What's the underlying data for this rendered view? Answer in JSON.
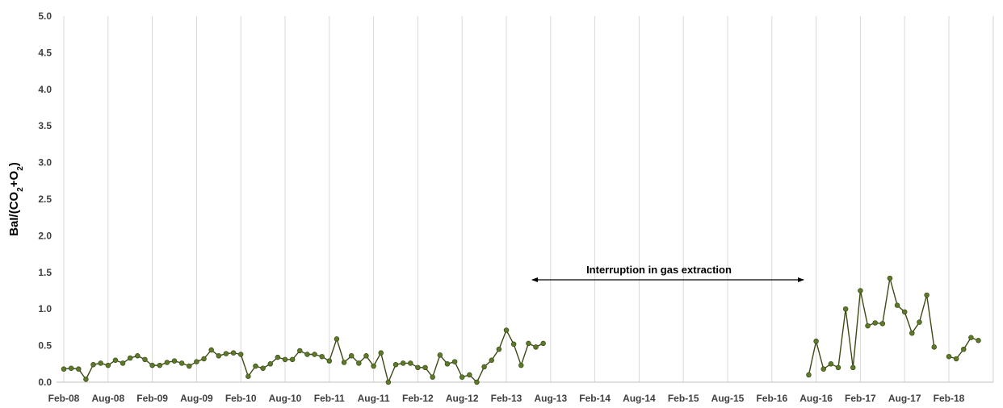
{
  "chart_data": {
    "type": "line",
    "title": "",
    "ylabel": {
      "base": "BaI/(CO",
      "sub1": "2",
      "mid": "+O",
      "sub2": "2",
      "end": ")"
    },
    "xlabel": "",
    "ylim": [
      0,
      5.0
    ],
    "yticks": [
      "0.0",
      "0.5",
      "1.0",
      "1.5",
      "2.0",
      "2.5",
      "3.0",
      "3.5",
      "4.0",
      "4.5",
      "5.0"
    ],
    "xticks": [
      "Feb-08",
      "Aug-08",
      "Feb-09",
      "Aug-09",
      "Feb-10",
      "Aug-10",
      "Feb-11",
      "Aug-11",
      "Feb-12",
      "Aug-12",
      "Feb-13",
      "Aug-13",
      "Feb-14",
      "Aug-14",
      "Feb-15",
      "Aug-15",
      "Feb-16",
      "Aug-16",
      "Feb-17",
      "Aug-17",
      "Feb-18"
    ],
    "grid": "vertical",
    "annotation": "Interruption in gas extraction",
    "colors": {
      "line": "#3d4a14",
      "marker": "#5c7a28",
      "grid": "#d9d9d9",
      "arrow": "#000000"
    },
    "series": [
      {
        "segments": [
          [
            {
              "x": "Feb-08",
              "y": 0.18
            },
            {
              "x": "Mar-08",
              "y": 0.19
            },
            {
              "x": "Apr-08",
              "y": 0.18
            },
            {
              "x": "May-08",
              "y": 0.04
            },
            {
              "x": "Jun-08",
              "y": 0.24
            },
            {
              "x": "Jul-08",
              "y": 0.26
            },
            {
              "x": "Aug-08",
              "y": 0.23
            },
            {
              "x": "Sep-08",
              "y": 0.3
            },
            {
              "x": "Oct-08",
              "y": 0.26
            },
            {
              "x": "Nov-08",
              "y": 0.33
            },
            {
              "x": "Dec-08",
              "y": 0.36
            },
            {
              "x": "Jan-09",
              "y": 0.31
            },
            {
              "x": "Feb-09",
              "y": 0.23
            },
            {
              "x": "Mar-09",
              "y": 0.23
            },
            {
              "x": "Apr-09",
              "y": 0.27
            },
            {
              "x": "May-09",
              "y": 0.29
            },
            {
              "x": "Jun-09",
              "y": 0.26
            },
            {
              "x": "Jul-09",
              "y": 0.22
            },
            {
              "x": "Aug-09",
              "y": 0.28
            },
            {
              "x": "Sep-09",
              "y": 0.32
            },
            {
              "x": "Oct-09",
              "y": 0.44
            },
            {
              "x": "Nov-09",
              "y": 0.36
            },
            {
              "x": "Dec-09",
              "y": 0.39
            },
            {
              "x": "Jan-10",
              "y": 0.4
            },
            {
              "x": "Feb-10",
              "y": 0.38
            },
            {
              "x": "Mar-10",
              "y": 0.08
            },
            {
              "x": "Apr-10",
              "y": 0.22
            },
            {
              "x": "May-10",
              "y": 0.19
            },
            {
              "x": "Jun-10",
              "y": 0.25
            },
            {
              "x": "Jul-10",
              "y": 0.34
            },
            {
              "x": "Aug-10",
              "y": 0.31
            },
            {
              "x": "Sep-10",
              "y": 0.31
            },
            {
              "x": "Oct-10",
              "y": 0.43
            },
            {
              "x": "Nov-10",
              "y": 0.38
            },
            {
              "x": "Dec-10",
              "y": 0.38
            },
            {
              "x": "Jan-11",
              "y": 0.35
            },
            {
              "x": "Feb-11",
              "y": 0.29
            },
            {
              "x": "Mar-11",
              "y": 0.59
            },
            {
              "x": "Apr-11",
              "y": 0.27
            },
            {
              "x": "May-11",
              "y": 0.36
            },
            {
              "x": "Jun-11",
              "y": 0.26
            },
            {
              "x": "Jul-11",
              "y": 0.36
            },
            {
              "x": "Aug-11",
              "y": 0.22
            },
            {
              "x": "Sep-11",
              "y": 0.4
            },
            {
              "x": "Oct-11",
              "y": 0.0
            },
            {
              "x": "Nov-11",
              "y": 0.24
            },
            {
              "x": "Dec-11",
              "y": 0.26
            },
            {
              "x": "Jan-12",
              "y": 0.26
            },
            {
              "x": "Feb-12",
              "y": 0.2
            },
            {
              "x": "Mar-12",
              "y": 0.2
            },
            {
              "x": "Apr-12",
              "y": 0.07
            },
            {
              "x": "May-12",
              "y": 0.37
            },
            {
              "x": "Jun-12",
              "y": 0.25
            },
            {
              "x": "Jul-12",
              "y": 0.28
            },
            {
              "x": "Aug-12",
              "y": 0.07
            },
            {
              "x": "Sep-12",
              "y": 0.1
            },
            {
              "x": "Oct-12",
              "y": 0.0
            },
            {
              "x": "Nov-12",
              "y": 0.21
            },
            {
              "x": "Dec-12",
              "y": 0.3
            },
            {
              "x": "Jan-13",
              "y": 0.45
            },
            {
              "x": "Feb-13",
              "y": 0.71
            },
            {
              "x": "Mar-13",
              "y": 0.52
            },
            {
              "x": "Apr-13",
              "y": 0.23
            },
            {
              "x": "May-13",
              "y": 0.53
            },
            {
              "x": "Jun-13",
              "y": 0.48
            },
            {
              "x": "Jul-13",
              "y": 0.53
            }
          ],
          [
            {
              "x": "Jul-16",
              "y": 0.1
            },
            {
              "x": "Aug-16",
              "y": 0.56
            },
            {
              "x": "Sep-16",
              "y": 0.18
            },
            {
              "x": "Oct-16",
              "y": 0.25
            },
            {
              "x": "Nov-16",
              "y": 0.2
            },
            {
              "x": "Dec-16",
              "y": 1.0
            },
            {
              "x": "Jan-17",
              "y": 0.2
            },
            {
              "x": "Feb-17",
              "y": 1.25
            },
            {
              "x": "Mar-17",
              "y": 0.77
            },
            {
              "x": "Apr-17",
              "y": 0.81
            },
            {
              "x": "May-17",
              "y": 0.8
            },
            {
              "x": "Jun-17",
              "y": 1.42
            },
            {
              "x": "Jul-17",
              "y": 1.05
            },
            {
              "x": "Aug-17",
              "y": 0.96
            },
            {
              "x": "Sep-17",
              "y": 0.67
            },
            {
              "x": "Oct-17",
              "y": 0.82
            },
            {
              "x": "Nov-17",
              "y": 1.19
            },
            {
              "x": "Dec-17",
              "y": 0.48
            }
          ],
          [
            {
              "x": "Feb-18",
              "y": 0.35
            },
            {
              "x": "Mar-18",
              "y": 0.32
            },
            {
              "x": "Apr-18",
              "y": 0.45
            },
            {
              "x": "May-18",
              "y": 0.61
            },
            {
              "x": "Jun-18",
              "y": 0.57
            }
          ]
        ]
      }
    ]
  }
}
